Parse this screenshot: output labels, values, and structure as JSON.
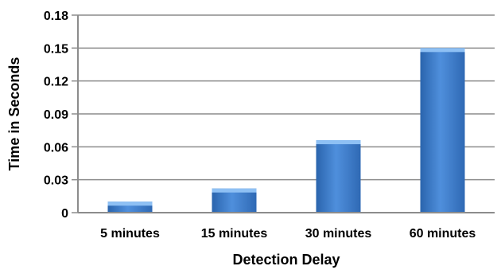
{
  "chart_data": {
    "type": "bar",
    "title": "",
    "xlabel": "Detection Delay",
    "ylabel": "Time in Seconds",
    "categories": [
      "5 minutes",
      "15 minutes",
      "30 minutes",
      "60 minutes"
    ],
    "values": [
      0.01,
      0.022,
      0.066,
      0.15
    ],
    "ylim": [
      0,
      0.18
    ],
    "yticks": [
      "0",
      "0.03",
      "0.06",
      "0.09",
      "0.12",
      "0.15",
      "0.18"
    ],
    "grid": true,
    "legend": "none",
    "colors": {
      "bar_top": "#6ea8e8",
      "bar_mid": "#3f7fcf",
      "bar_bottom": "#2a64ad",
      "bar_cap": "#8ec0f4",
      "grid": "#8c8c8c",
      "axis": "#8c8c8c"
    }
  }
}
